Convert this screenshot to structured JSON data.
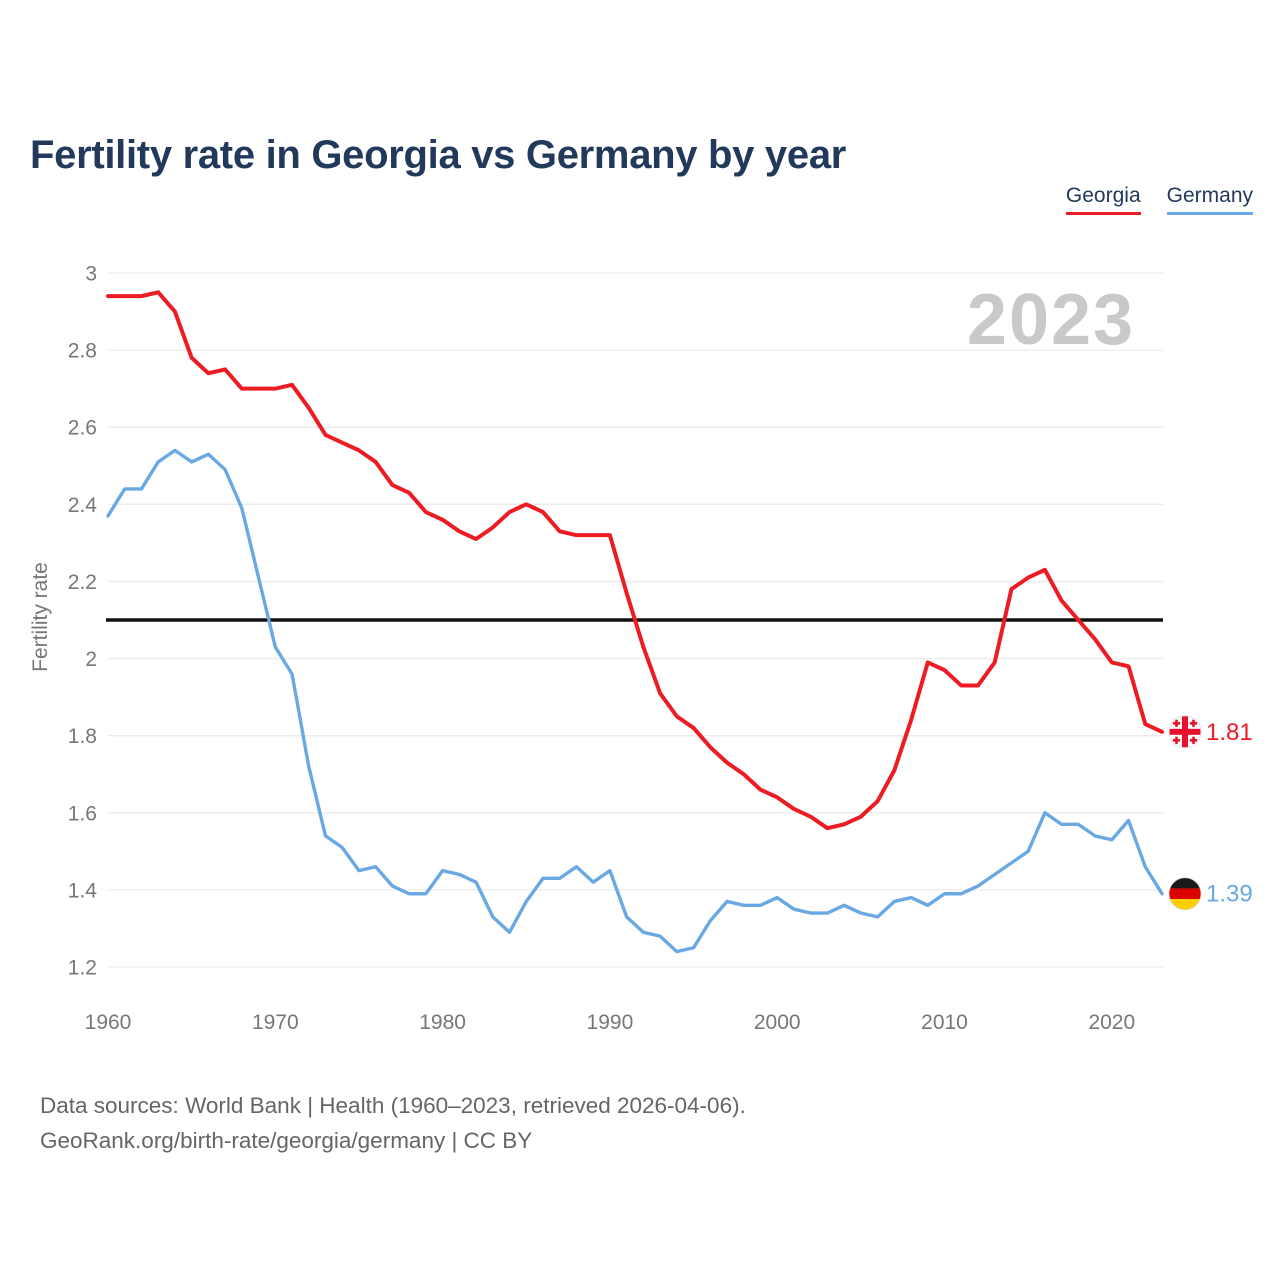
{
  "title": "Fertility rate in Georgia vs Germany by year",
  "watermark_year": "2023",
  "legend": {
    "items": [
      {
        "label": "Georgia",
        "color": "#ED1C24"
      },
      {
        "label": "Germany",
        "color": "#69a8e3"
      }
    ]
  },
  "y_axis": {
    "label": "Fertility rate",
    "ticks": [
      "3",
      "2.8",
      "2.6",
      "2.4",
      "2.2",
      "2",
      "1.8",
      "1.6",
      "1.4",
      "1.2"
    ]
  },
  "x_axis": {
    "ticks": [
      "1960",
      "1970",
      "1980",
      "1990",
      "2000",
      "2010",
      "2020"
    ]
  },
  "end_labels": {
    "georgia": {
      "value": "1.81",
      "flag": "georgia-flag"
    },
    "germany": {
      "value": "1.39",
      "flag": "germany-flag"
    }
  },
  "footer": {
    "line1": "Data sources: World Bank | Health (1960–2023, retrieved 2026-04-06).",
    "line2": "GeoRank.org/birth-rate/georgia/germany | CC BY"
  },
  "colors": {
    "georgia": "#ED1C24",
    "germany": "#69a8e3",
    "title_text": "#22395c",
    "axis_text": "#777777",
    "gridline": "#ececec",
    "reference_line": "#111111",
    "watermark": "#c9c9c9",
    "footer_text": "#656565",
    "flag_red": "#e8112d",
    "flag_black": "#1a1a1a",
    "flag_gold": "#ffce00"
  },
  "chart_data": {
    "type": "line",
    "title": "Fertility rate in Georgia vs Germany by year",
    "xlabel": "",
    "ylabel": "Fertility rate",
    "xlim": [
      1960,
      2023
    ],
    "ylim": [
      1.2,
      3.0
    ],
    "x_ticks": [
      1960,
      1970,
      1980,
      1990,
      2000,
      2010,
      2020
    ],
    "y_ticks": [
      3,
      2.8,
      2.6,
      2.4,
      2.2,
      2,
      1.8,
      1.6,
      1.4,
      1.2
    ],
    "grid": "horizontal",
    "legend_position": "top-right",
    "reference_line": 2.1,
    "x": [
      1960,
      1961,
      1962,
      1963,
      1964,
      1965,
      1966,
      1967,
      1968,
      1969,
      1970,
      1971,
      1972,
      1973,
      1974,
      1975,
      1976,
      1977,
      1978,
      1979,
      1980,
      1981,
      1982,
      1983,
      1984,
      1985,
      1986,
      1987,
      1988,
      1989,
      1990,
      1991,
      1992,
      1993,
      1994,
      1995,
      1996,
      1997,
      1998,
      1999,
      2000,
      2001,
      2002,
      2003,
      2004,
      2005,
      2006,
      2007,
      2008,
      2009,
      2010,
      2011,
      2012,
      2013,
      2014,
      2015,
      2016,
      2017,
      2018,
      2019,
      2020,
      2021,
      2022,
      2023
    ],
    "series": [
      {
        "name": "Georgia",
        "color": "#ED1C24",
        "values": [
          2.94,
          2.94,
          2.94,
          2.95,
          2.9,
          2.78,
          2.74,
          2.75,
          2.7,
          2.7,
          2.7,
          2.71,
          2.65,
          2.58,
          2.56,
          2.54,
          2.51,
          2.45,
          2.43,
          2.38,
          2.36,
          2.33,
          2.31,
          2.34,
          2.38,
          2.4,
          2.38,
          2.33,
          2.32,
          2.32,
          2.32,
          2.17,
          2.03,
          1.91,
          1.85,
          1.82,
          1.77,
          1.73,
          1.7,
          1.66,
          1.64,
          1.61,
          1.59,
          1.56,
          1.57,
          1.59,
          1.63,
          1.71,
          1.84,
          1.99,
          1.97,
          1.93,
          1.93,
          1.99,
          2.18,
          2.21,
          2.23,
          2.15,
          2.1,
          2.05,
          1.99,
          1.98,
          1.83,
          1.81
        ]
      },
      {
        "name": "Germany",
        "color": "#69a8e3",
        "values": [
          2.37,
          2.44,
          2.44,
          2.51,
          2.54,
          2.51,
          2.53,
          2.49,
          2.39,
          2.21,
          2.03,
          1.96,
          1.72,
          1.54,
          1.51,
          1.45,
          1.46,
          1.41,
          1.39,
          1.39,
          1.45,
          1.44,
          1.42,
          1.33,
          1.29,
          1.37,
          1.43,
          1.43,
          1.46,
          1.42,
          1.45,
          1.33,
          1.29,
          1.28,
          1.24,
          1.25,
          1.32,
          1.37,
          1.36,
          1.36,
          1.38,
          1.35,
          1.34,
          1.34,
          1.36,
          1.34,
          1.33,
          1.37,
          1.38,
          1.36,
          1.39,
          1.39,
          1.41,
          1.44,
          1.47,
          1.5,
          1.6,
          1.57,
          1.57,
          1.54,
          1.53,
          1.58,
          1.46,
          1.39
        ]
      }
    ],
    "end_values": {
      "Georgia": 1.81,
      "Germany": 1.39
    }
  }
}
